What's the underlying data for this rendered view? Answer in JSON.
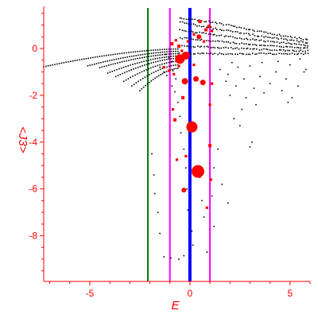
{
  "chart_data": {
    "type": "scatter",
    "title": "",
    "xlabel": "E",
    "ylabel": "<J3>",
    "xlim": [
      -7.3,
      6.0
    ],
    "ylim": [
      -9.95,
      1.8
    ],
    "grid": false,
    "legend": "none",
    "x_ticks": [
      {
        "value": -5,
        "label": "-5"
      },
      {
        "value": 0,
        "label": "0"
      },
      {
        "value": 5,
        "label": "5"
      }
    ],
    "y_ticks": [
      {
        "value": 0,
        "label": "0"
      },
      {
        "value": -2,
        "label": "-2"
      },
      {
        "value": -4,
        "label": "-4"
      },
      {
        "value": -6,
        "label": "-6"
      },
      {
        "value": -8,
        "label": "-8"
      }
    ],
    "vertical_lines": [
      {
        "x": -2.1,
        "color": "#008000"
      },
      {
        "x": -1.0,
        "color": "#ff00ff"
      },
      {
        "x": 0.0,
        "color": "#0000ff"
      },
      {
        "x": 1.0,
        "color": "#ff00ff"
      }
    ],
    "colors": {
      "spectrum": "#000000",
      "highlight": "#ff0000",
      "axis": "#ff0000"
    },
    "branches": [
      {
        "x_start": -7.3,
        "y_start": -0.78,
        "x_end": -0.6,
        "y_end": -0.02,
        "spread": 0.0
      },
      {
        "x_start": -5.1,
        "y_start": -0.74,
        "x_end": -0.6,
        "y_end": -0.12,
        "spread": 0.0
      },
      {
        "x_start": -4.5,
        "y_start": -0.82,
        "x_end": -0.6,
        "y_end": -0.22,
        "spread": 0.0
      },
      {
        "x_start": -4.1,
        "y_start": -1.05,
        "x_end": -0.6,
        "y_end": -0.32,
        "spread": 0.0
      },
      {
        "x_start": -3.7,
        "y_start": -1.2,
        "x_end": -0.6,
        "y_end": -0.42,
        "spread": 0.0
      },
      {
        "x_start": -3.3,
        "y_start": -1.4,
        "x_end": -0.6,
        "y_end": -0.55,
        "spread": 0.0
      },
      {
        "x_start": -2.9,
        "y_start": -1.6,
        "x_end": -0.6,
        "y_end": -0.7,
        "spread": 0.0
      },
      {
        "x_start": -2.5,
        "y_start": -1.8,
        "x_end": -0.6,
        "y_end": -0.85,
        "spread": 0.0
      }
    ],
    "band": {
      "x_start": -0.5,
      "x_end": 5.9,
      "y_center": -0.05,
      "y_width": 0.35,
      "upper_left": 1.3,
      "upper_right": 0.6
    },
    "black_scatter": [
      [
        -1.2,
        -0.25
      ],
      [
        -1.05,
        -0.4
      ],
      [
        -0.9,
        -0.55
      ],
      [
        -0.85,
        -0.95
      ],
      [
        -0.7,
        -1.3
      ],
      [
        -1.3,
        -1.0
      ],
      [
        -1.5,
        -0.8
      ],
      [
        -1.15,
        -1.15
      ],
      [
        -0.9,
        -1.6
      ],
      [
        -0.75,
        -1.85
      ],
      [
        -0.6,
        -2.3
      ],
      [
        -0.5,
        -2.9
      ],
      [
        -0.45,
        -3.6
      ],
      [
        -0.3,
        -4.3
      ],
      [
        -0.2,
        -5.1
      ],
      [
        -0.15,
        -6.0
      ],
      [
        -0.1,
        -6.9
      ],
      [
        0.1,
        -7.8
      ],
      [
        0.15,
        -8.4
      ],
      [
        -1.9,
        -4.5
      ],
      [
        -1.8,
        -5.4
      ],
      [
        -1.75,
        -6.2
      ],
      [
        -1.6,
        -7.0
      ],
      [
        -1.5,
        -7.9
      ],
      [
        -1.3,
        -8.9
      ],
      [
        -0.95,
        -8.95
      ],
      [
        -0.55,
        -9.0
      ],
      [
        -0.3,
        -8.85
      ],
      [
        0.5,
        -5.5
      ],
      [
        0.6,
        -6.5
      ],
      [
        0.7,
        -7.2
      ],
      [
        0.85,
        -8.7
      ],
      [
        1.1,
        -6.3
      ],
      [
        1.2,
        -5.1
      ],
      [
        1.4,
        -4.3
      ],
      [
        1.6,
        -5.8
      ],
      [
        1.9,
        -6.6
      ],
      [
        1.2,
        -7.6
      ],
      [
        2.2,
        -3.0
      ],
      [
        2.5,
        -3.3
      ],
      [
        3.0,
        -4.2
      ],
      [
        3.1,
        -4.0
      ],
      [
        1.9,
        -1.1
      ],
      [
        2.3,
        -1.6
      ],
      [
        2.7,
        -1.3
      ],
      [
        2.8,
        -2.1
      ],
      [
        3.2,
        -1.7
      ],
      [
        3.5,
        -1.2
      ],
      [
        3.7,
        -1.9
      ],
      [
        4.0,
        -1.5
      ],
      [
        4.3,
        -1.0
      ],
      [
        4.6,
        -1.8
      ],
      [
        4.8,
        -1.3
      ],
      [
        5.1,
        -2.1
      ],
      [
        5.4,
        -1.6
      ],
      [
        5.7,
        -1.0
      ],
      [
        3.3,
        -2.4
      ],
      [
        2.1,
        -0.6
      ],
      [
        2.4,
        -0.8
      ],
      [
        3.0,
        -0.75
      ],
      [
        3.6,
        -0.6
      ],
      [
        4.4,
        -0.55
      ],
      [
        5.0,
        -0.7
      ],
      [
        5.5,
        -0.45
      ],
      [
        5.8,
        -0.9
      ],
      [
        2.6,
        -2.6
      ],
      [
        4.9,
        -2.3
      ],
      [
        1.5,
        -0.9
      ],
      [
        1.8,
        -1.4
      ],
      [
        2.0,
        -2.0
      ]
    ],
    "red_points": [
      {
        "x": 0.1,
        "y": -3.35,
        "size": 7
      },
      {
        "x": 0.4,
        "y": -5.25,
        "size": 8
      },
      {
        "x": -0.5,
        "y": -0.45,
        "size": 6
      },
      {
        "x": -0.2,
        "y": -0.3,
        "size": 5
      },
      {
        "x": -0.25,
        "y": -1.4,
        "size": 4
      },
      {
        "x": 0.3,
        "y": -1.3,
        "size": 3.5
      },
      {
        "x": 0.65,
        "y": -1.45,
        "size": 3.5
      },
      {
        "x": 0.45,
        "y": 0.5,
        "size": 3
      },
      {
        "x": 0.8,
        "y": 0.8,
        "size": 2.5
      },
      {
        "x": 0.95,
        "y": 0.95,
        "size": 2.5
      },
      {
        "x": 1.1,
        "y": 0.75,
        "size": 2
      },
      {
        "x": 0.5,
        "y": 1.15,
        "size": 2.5
      },
      {
        "x": 0.2,
        "y": 0.6,
        "size": 2
      },
      {
        "x": -0.9,
        "y": 0.2,
        "size": 2.5
      },
      {
        "x": -0.7,
        "y": 0.35,
        "size": 2
      },
      {
        "x": -0.55,
        "y": 0.1,
        "size": 2.5
      },
      {
        "x": -0.4,
        "y": -0.1,
        "size": 2
      },
      {
        "x": -1.3,
        "y": -0.8,
        "size": 2
      },
      {
        "x": -1.05,
        "y": -0.95,
        "size": 2
      },
      {
        "x": -0.8,
        "y": -1.1,
        "size": 2
      },
      {
        "x": -0.55,
        "y": -0.75,
        "size": 2
      },
      {
        "x": -0.35,
        "y": -2.1,
        "size": 2.5
      },
      {
        "x": 1.0,
        "y": -2.4,
        "size": 2
      },
      {
        "x": -0.75,
        "y": -3.05,
        "size": 2.5
      },
      {
        "x": 1.0,
        "y": -4.15,
        "size": 2.5
      },
      {
        "x": -0.65,
        "y": -4.75,
        "size": 2
      },
      {
        "x": -0.3,
        "y": -6.05,
        "size": 3
      },
      {
        "x": 0.85,
        "y": -6.8,
        "size": 2
      },
      {
        "x": 1.05,
        "y": -5.6,
        "size": 2
      },
      {
        "x": -0.2,
        "y": -4.6,
        "size": 2
      },
      {
        "x": -0.85,
        "y": -2.6,
        "size": 2
      },
      {
        "x": 1.1,
        "y": -1.5,
        "size": 2
      },
      {
        "x": 0.2,
        "y": -0.7,
        "size": 2
      },
      {
        "x": -0.1,
        "y": 0.3,
        "size": 2
      },
      {
        "x": 0.7,
        "y": 0.3,
        "size": 2
      }
    ]
  }
}
